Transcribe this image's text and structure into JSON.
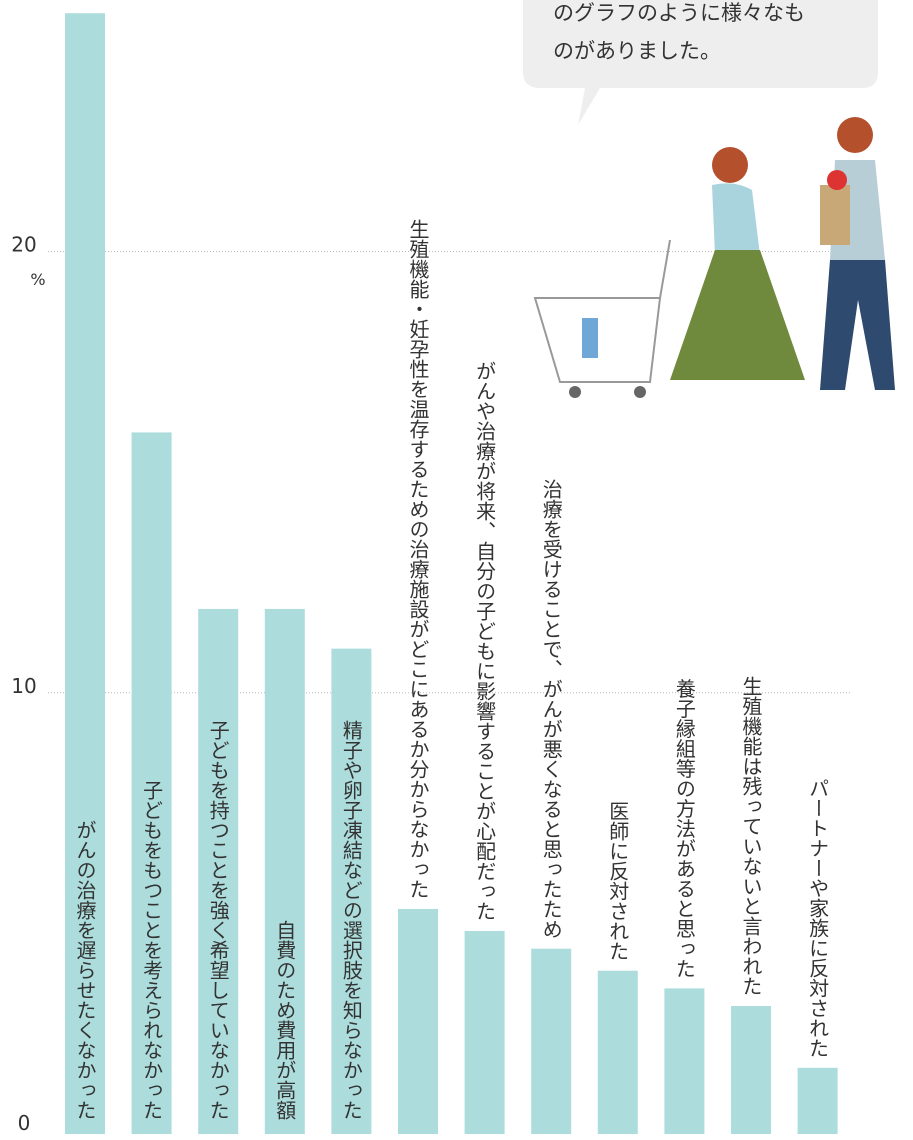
{
  "chart_data": {
    "type": "bar",
    "annotation": [
      "のグラフのように様々なも",
      "のがありました。"
    ],
    "y_unit": "%",
    "categories": [
      "がんの治療を遅らせたくなかった",
      "子どもをもつことを考えられなかった",
      "子どもを持つことを強く希望していなかった",
      "自費のため費用が高額",
      "精子や卵子凍結などの選択肢を知らなかった",
      "生殖機能・妊孕性を温存するための治療施設がどこにあるか分からなかった",
      "がんや治療が将来、自分の子どもに影響することが心配だった",
      "治療を受けることで、がんが悪くなると思ったため",
      "医師に反対された",
      "養子縁組等の方法があると思った",
      "生殖機能は残っていないと言われた",
      "パートナーや家族に反対された"
    ],
    "values": [
      25.4,
      15.9,
      11.9,
      11.9,
      11.0,
      5.1,
      4.6,
      4.2,
      3.7,
      3.3,
      2.9,
      1.5
    ],
    "color": "#acdcdc",
    "ylim": [
      0,
      25.7
    ],
    "yticks": [
      0,
      10,
      20
    ],
    "grid": true
  }
}
